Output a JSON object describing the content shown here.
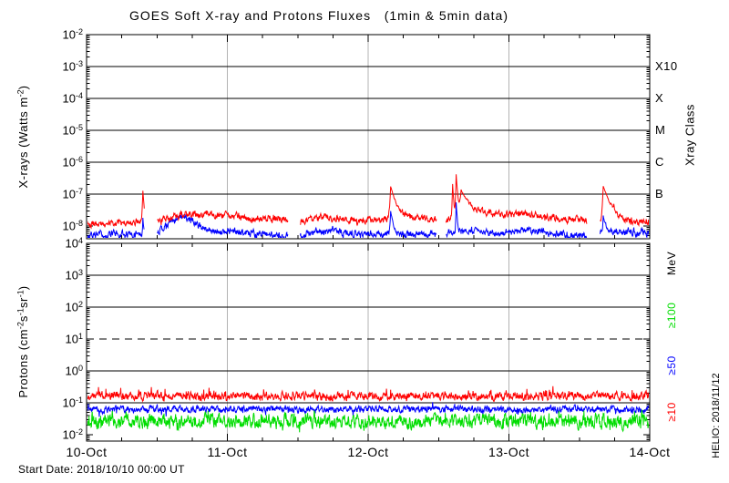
{
  "title": "GOES Soft X-ray and Protons Fluxes   (1min & 5min data)",
  "start_date": "Start Date: 2018/10/10 00:00 UT",
  "watermark": "HELIO: 2018/11/12",
  "colors": {
    "axis": "#000000",
    "day_grid": "#b3b3b3",
    "xray_long": "#ff0000",
    "xray_short": "#0000ff",
    "proton_ge10": "#ff0000",
    "proton_ge50": "#0000ff",
    "proton_ge100": "#00dd00"
  },
  "xaxis": {
    "start_label": "10-Oct",
    "tick_labels": [
      "10-Oct",
      "11-Oct",
      "12-Oct",
      "13-Oct",
      "14-Oct"
    ],
    "tick_days": [
      0,
      1,
      2,
      3,
      4
    ],
    "minor_ticks_per_day": 4,
    "day_gridlines": [
      1,
      2,
      3
    ]
  },
  "chart_data": [
    {
      "id": "xray",
      "type": "line",
      "ylabel_parts": [
        {
          "t": "X-rays (Watts m"
        },
        {
          "t": "-2",
          "sup": true
        },
        {
          "t": ")"
        }
      ],
      "right_axis_label": "Xray Class",
      "ytick_exponents": [
        -2,
        -3,
        -4,
        -5,
        -6,
        -7,
        -8
      ],
      "ylim": [
        4e-09,
        0.01
      ],
      "hgrid_exponents": [
        -3,
        -4,
        -5,
        -6,
        -7
      ],
      "class_labels": [
        {
          "text": "X10",
          "exp": -3
        },
        {
          "text": "X",
          "exp": -4
        },
        {
          "text": "M",
          "exp": -5
        },
        {
          "text": "C",
          "exp": -6
        },
        {
          "text": "B",
          "exp": -7
        }
      ],
      "series": [
        {
          "name": "xray-short-0.5-4A",
          "color": "#0000ff",
          "seed": 202,
          "noise_dec": 0.09,
          "spike_prob": 0.02,
          "spike_dec": 0.1,
          "anchors": [
            [
              0,
              5.2e-09
            ],
            [
              0.3,
              5.5e-09
            ],
            [
              0.5,
              6e-09
            ],
            [
              0.6,
              1.3e-08
            ],
            [
              0.68,
              2.1e-08
            ],
            [
              0.75,
              1.4e-08
            ],
            [
              0.85,
              8e-09
            ],
            [
              0.95,
              6.5e-09
            ],
            [
              1.05,
              7e-09
            ],
            [
              1.2,
              5.5e-09
            ],
            [
              1.4,
              5e-09
            ],
            [
              1.6,
              6e-09
            ],
            [
              1.75,
              7.5e-09
            ],
            [
              1.95,
              5.5e-09
            ],
            [
              2.15,
              6e-09
            ],
            [
              2.35,
              5.5e-09
            ],
            [
              2.6,
              6.5e-09
            ],
            [
              2.75,
              7.5e-09
            ],
            [
              2.95,
              6e-09
            ],
            [
              3.1,
              7.5e-09
            ],
            [
              3.3,
              6e-09
            ],
            [
              3.5,
              5e-09
            ],
            [
              3.7,
              6e-09
            ],
            [
              3.85,
              7e-09
            ],
            [
              4,
              5.5e-09
            ]
          ],
          "flares": [
            {
              "t": 0.4,
              "peak": 1.4e-08,
              "rise": 0.002,
              "decay": 0.004
            },
            {
              "t": 2.16,
              "peak": 2.4e-08,
              "rise": 0.003,
              "decay": 0.012
            },
            {
              "t": 2.625,
              "peak": 4.8e-08,
              "rise": 0.002,
              "decay": 0.005
            },
            {
              "t": 3.67,
              "peak": 1.5e-08,
              "rise": 0.003,
              "decay": 0.015
            }
          ],
          "gaps": [
            [
              0.412,
              0.5
            ],
            [
              1.432,
              1.515
            ],
            [
              2.487,
              2.55
            ],
            [
              3.555,
              3.645
            ]
          ]
        },
        {
          "name": "xray-long-1-8A",
          "color": "#ff0000",
          "seed": 101,
          "noise_dec": 0.09,
          "spike_prob": 0.03,
          "spike_dec": 0.12,
          "anchors": [
            [
              0,
              1.3e-08
            ],
            [
              0.1,
              1.15e-08
            ],
            [
              0.2,
              1.3e-08
            ],
            [
              0.3,
              1.2e-08
            ],
            [
              0.38,
              1.4e-08
            ],
            [
              0.5,
              1.5e-08
            ],
            [
              0.58,
              1.8e-08
            ],
            [
              0.65,
              2.3e-08
            ],
            [
              0.72,
              2.6e-08
            ],
            [
              0.8,
              2.1e-08
            ],
            [
              0.88,
              2.5e-08
            ],
            [
              0.95,
              2e-08
            ],
            [
              1.05,
              2.1e-08
            ],
            [
              1.15,
              1.7e-08
            ],
            [
              1.25,
              1.6e-08
            ],
            [
              1.35,
              1.7e-08
            ],
            [
              1.43,
              1.6e-08
            ],
            [
              1.52,
              1.4e-08
            ],
            [
              1.6,
              1.6e-08
            ],
            [
              1.7,
              1.9e-08
            ],
            [
              1.8,
              1.7e-08
            ],
            [
              1.9,
              1.5e-08
            ],
            [
              2.0,
              1.5e-08
            ],
            [
              2.1,
              1.5e-08
            ],
            [
              2.2,
              2.4e-08
            ],
            [
              2.3,
              2e-08
            ],
            [
              2.4,
              1.8e-08
            ],
            [
              2.48,
              1.7e-08
            ],
            [
              2.55,
              1.5e-08
            ],
            [
              2.7,
              2.4e-08
            ],
            [
              2.8,
              2.6e-08
            ],
            [
              2.9,
              2.3e-08
            ],
            [
              3.0,
              2.2e-08
            ],
            [
              3.1,
              2.4e-08
            ],
            [
              3.2,
              2.2e-08
            ],
            [
              3.3,
              1.9e-08
            ],
            [
              3.4,
              1.7e-08
            ],
            [
              3.5,
              1.6e-08
            ],
            [
              3.56,
              1.5e-08
            ],
            [
              3.65,
              1.4e-08
            ],
            [
              3.72,
              2.2e-08
            ],
            [
              3.8,
              1.7e-08
            ],
            [
              3.9,
              1.3e-08
            ],
            [
              4.0,
              1.25e-08
            ]
          ],
          "flares": [
            {
              "t": 0.4,
              "peak": 1.15e-07,
              "rise": 0.003,
              "decay": 0.006
            },
            {
              "t": 2.16,
              "peak": 1.55e-07,
              "rise": 0.004,
              "decay": 0.022
            },
            {
              "t": 2.6,
              "peak": 1.9e-07,
              "rise": 0.0025,
              "decay": 0.005
            },
            {
              "t": 2.625,
              "peak": 4e-07,
              "rise": 0.0025,
              "decay": 0.007
            },
            {
              "t": 2.66,
              "peak": 1.15e-07,
              "rise": 0.006,
              "decay": 0.04
            },
            {
              "t": 3.67,
              "peak": 1.6e-07,
              "rise": 0.004,
              "decay": 0.03
            }
          ],
          "gaps": [
            [
              0.412,
              0.5
            ],
            [
              1.432,
              1.515
            ],
            [
              2.487,
              2.55
            ],
            [
              3.555,
              3.645
            ]
          ]
        }
      ]
    },
    {
      "id": "protons",
      "type": "line",
      "ylabel_parts": [
        {
          "t": "Protons (cm"
        },
        {
          "t": "-2",
          "sup": true
        },
        {
          "t": "s"
        },
        {
          "t": "-1",
          "sup": true
        },
        {
          "t": "sr"
        },
        {
          "t": "-1",
          "sup": true
        },
        {
          "t": ")"
        }
      ],
      "ytick_exponents": [
        4,
        3,
        2,
        1,
        0,
        -1,
        -2
      ],
      "ylim": [
        0.0063,
        10000.0
      ],
      "hgrid_exponents": [
        3,
        2,
        0,
        -1
      ],
      "threshold_dashed_exp": 1,
      "right_labels": [
        {
          "text": "MeV",
          "color": "#000000"
        },
        {
          "text": "≥100",
          "color": "#00dd00"
        },
        {
          "text": "≥50",
          "color": "#0000ff"
        },
        {
          "text": "≥10",
          "color": "#ff0000"
        }
      ],
      "series": [
        {
          "name": "protons-ge10MeV",
          "color": "#ff0000",
          "seed": 303,
          "noise_dec": 0.1,
          "spike_prob": 0.08,
          "spike_dec": 0.16,
          "spike_up": true,
          "anchors": [
            [
              0,
              0.16
            ],
            [
              4,
              0.16
            ]
          ],
          "flares": [],
          "gaps": []
        },
        {
          "name": "protons-ge50MeV",
          "color": "#0000ff",
          "seed": 404,
          "noise_dec": 0.08,
          "spike_prob": 0.05,
          "spike_dec": 0.14,
          "anchors": [
            [
              0,
              0.062
            ],
            [
              4,
              0.062
            ]
          ],
          "flares": [],
          "gaps": []
        },
        {
          "name": "protons-ge100MeV",
          "color": "#00dd00",
          "seed": 505,
          "noise_dec": 0.17,
          "spike_prob": 0.12,
          "spike_dec": 0.2,
          "anchors": [
            [
              0,
              0.026
            ],
            [
              4,
              0.026
            ]
          ],
          "flares": [],
          "gaps": []
        }
      ]
    }
  ]
}
